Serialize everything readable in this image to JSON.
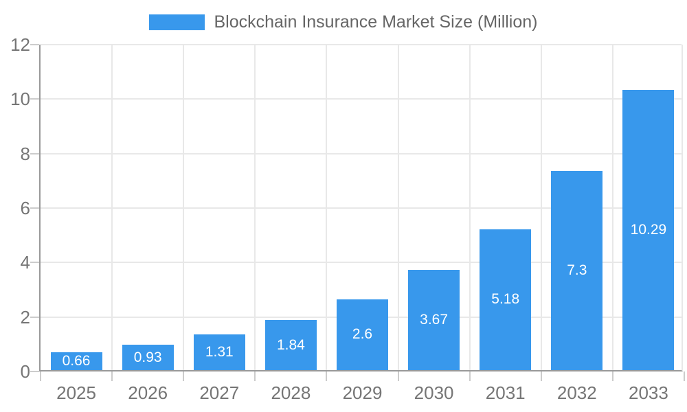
{
  "colors": {
    "bar": "#3898ec",
    "axis": "#999999",
    "grid": "#e8e8e8",
    "tick": "#cccccc",
    "axis_text": "#757575",
    "legend_text": "#666666",
    "bar_label_text": "#ffffff",
    "background": "#ffffff"
  },
  "legend": {
    "label": "Blockchain Insurance Market Size (Million)"
  },
  "chart_data": {
    "type": "bar",
    "title": "Blockchain Insurance Market Size (Million)",
    "categories": [
      "2025",
      "2026",
      "2027",
      "2028",
      "2029",
      "2030",
      "2031",
      "2032",
      "2033"
    ],
    "values": [
      0.66,
      0.93,
      1.31,
      1.84,
      2.6,
      3.67,
      5.18,
      7.3,
      10.29
    ],
    "bar_labels": [
      "0.66",
      "0.93",
      "1.31",
      "1.84",
      "2.6",
      "3.67",
      "5.18",
      "7.3",
      "10.29"
    ],
    "series_name": "Blockchain Insurance Market Size (Million)",
    "xlabel": "",
    "ylabel": "",
    "ylim": [
      0,
      12
    ],
    "yticks": [
      0,
      2,
      4,
      6,
      8,
      10,
      12
    ],
    "ytick_labels": [
      "0",
      "2",
      "4",
      "6",
      "8",
      "10",
      "12"
    ],
    "grid": true,
    "legend_position": "top",
    "bar_labels_inside": "centered"
  }
}
